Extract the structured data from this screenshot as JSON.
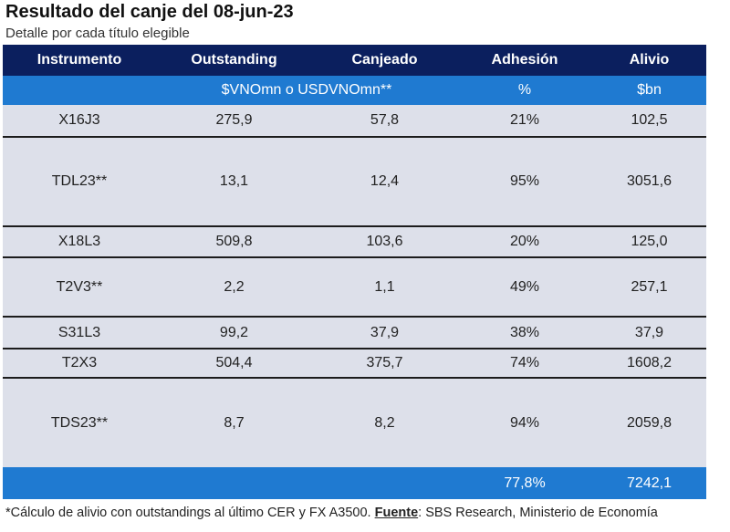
{
  "title": "Resultado del canje del 08-jun-23",
  "subtitle": "Detalle por cada título elegible",
  "table": {
    "headers": [
      "Instrumento",
      "Outstanding",
      "Canjeado",
      "Adhesión",
      "Alivio"
    ],
    "units": {
      "nominal": "$VNOmn o USDVNOmn**",
      "adhesion": "%",
      "alivio": "$bn"
    },
    "rows": [
      {
        "instrumento": "X16J3",
        "outstanding": "275,9",
        "canjeado": "57,8",
        "adhesion": "21%",
        "alivio": "102,5"
      },
      {
        "instrumento": "TDL23**",
        "outstanding": "13,1",
        "canjeado": "12,4",
        "adhesion": "95%",
        "alivio": "3051,6"
      },
      {
        "instrumento": "X18L3",
        "outstanding": "509,8",
        "canjeado": "103,6",
        "adhesion": "20%",
        "alivio": "125,0"
      },
      {
        "instrumento": "T2V3**",
        "outstanding": "2,2",
        "canjeado": "1,1",
        "adhesion": "49%",
        "alivio": "257,1"
      },
      {
        "instrumento": "S31L3",
        "outstanding": "99,2",
        "canjeado": "37,9",
        "adhesion": "38%",
        "alivio": "37,9"
      },
      {
        "instrumento": "T2X3",
        "outstanding": "504,4",
        "canjeado": "375,7",
        "adhesion": "74%",
        "alivio": "1608,2"
      },
      {
        "instrumento": "TDS23**",
        "outstanding": "8,7",
        "canjeado": "8,2",
        "adhesion": "94%",
        "alivio": "2059,8"
      }
    ],
    "totals": {
      "adhesion": "77,8%",
      "alivio": "7242,1"
    }
  },
  "footnote": {
    "text": "*Cálculo de alivio con outstandings al último CER y FX A3500.",
    "source_label": "Fuente",
    "source_text": ": SBS Research, Ministerio de Economía"
  },
  "colors": {
    "header_bg": "#0b1f5e",
    "accent_blue": "#1f7ad1",
    "row_bg": "#dde0ea",
    "row_border": "#1c1c1c"
  }
}
